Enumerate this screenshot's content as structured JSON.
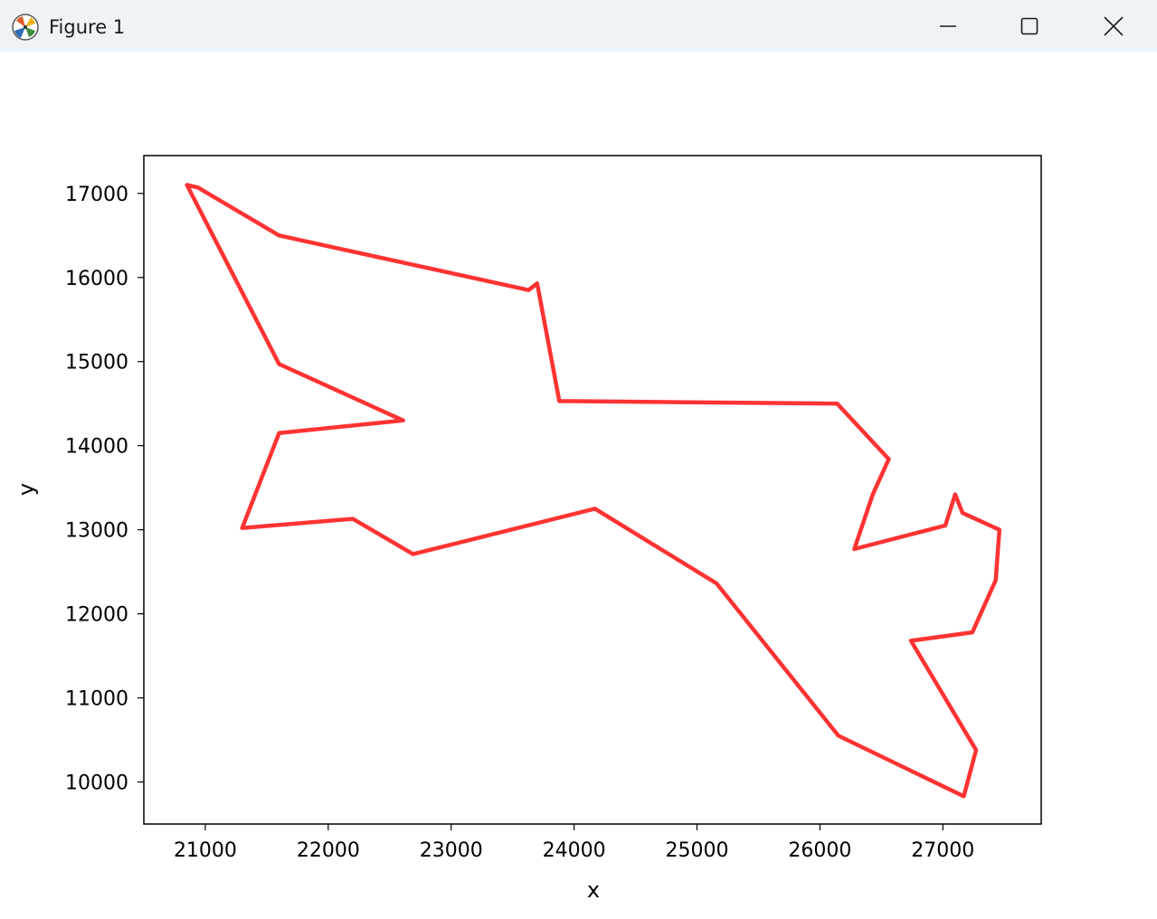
{
  "window": {
    "title": "Figure 1",
    "icons": {
      "app": "matplotlib-icon",
      "minimize": "minimize-icon",
      "maximize": "maximize-icon",
      "close": "close-icon"
    }
  },
  "chart_data": {
    "type": "line",
    "title": "",
    "xlabel": "x",
    "ylabel": "y",
    "xlim": [
      20500,
      27800
    ],
    "ylim": [
      9500,
      17450
    ],
    "xticks": [
      21000,
      22000,
      23000,
      24000,
      25000,
      26000,
      27000
    ],
    "yticks": [
      10000,
      11000,
      12000,
      13000,
      14000,
      15000,
      16000,
      17000
    ],
    "grid": false,
    "line_color": "#ff3333",
    "series": [
      {
        "name": "",
        "points": [
          [
            20850,
            17100
          ],
          [
            20940,
            17070
          ],
          [
            21600,
            16500
          ],
          [
            23630,
            15850
          ],
          [
            23700,
            15930
          ],
          [
            23880,
            14530
          ],
          [
            26140,
            14500
          ],
          [
            26560,
            13840
          ],
          [
            26430,
            13420
          ],
          [
            26280,
            12770
          ],
          [
            27020,
            13050
          ],
          [
            27100,
            13420
          ],
          [
            27160,
            13200
          ],
          [
            27460,
            13000
          ],
          [
            27430,
            12400
          ],
          [
            27240,
            11780
          ],
          [
            26740,
            11680
          ],
          [
            27270,
            10380
          ],
          [
            27170,
            9830
          ],
          [
            26150,
            10550
          ],
          [
            25160,
            12360
          ],
          [
            24170,
            13250
          ],
          [
            22690,
            12710
          ],
          [
            22200,
            13130
          ],
          [
            21300,
            13020
          ],
          [
            21600,
            14150
          ],
          [
            22610,
            14300
          ],
          [
            21600,
            14970
          ],
          [
            20850,
            17100
          ]
        ]
      }
    ]
  }
}
